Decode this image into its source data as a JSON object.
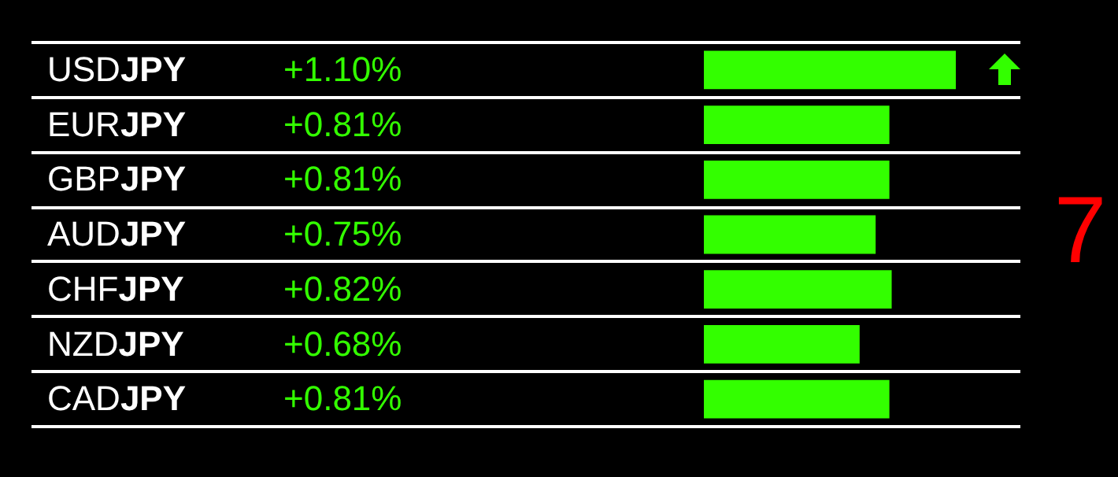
{
  "chart_data": {
    "type": "bar",
    "orientation": "horizontal",
    "categories": [
      "USDJPY",
      "EURJPY",
      "GBPJPY",
      "AUDJPY",
      "CHFJPY",
      "NZDJPY",
      "CADJPY"
    ],
    "values": [
      1.1,
      0.81,
      0.81,
      0.75,
      0.82,
      0.68,
      0.81
    ],
    "value_labels": [
      "+1.10%",
      "+0.81%",
      "+0.81%",
      "+0.75%",
      "+0.82%",
      "+0.68%",
      "+0.81%"
    ],
    "color": "#33ff00",
    "grid": true,
    "legend": false,
    "annotations": [
      "7"
    ]
  }
}
